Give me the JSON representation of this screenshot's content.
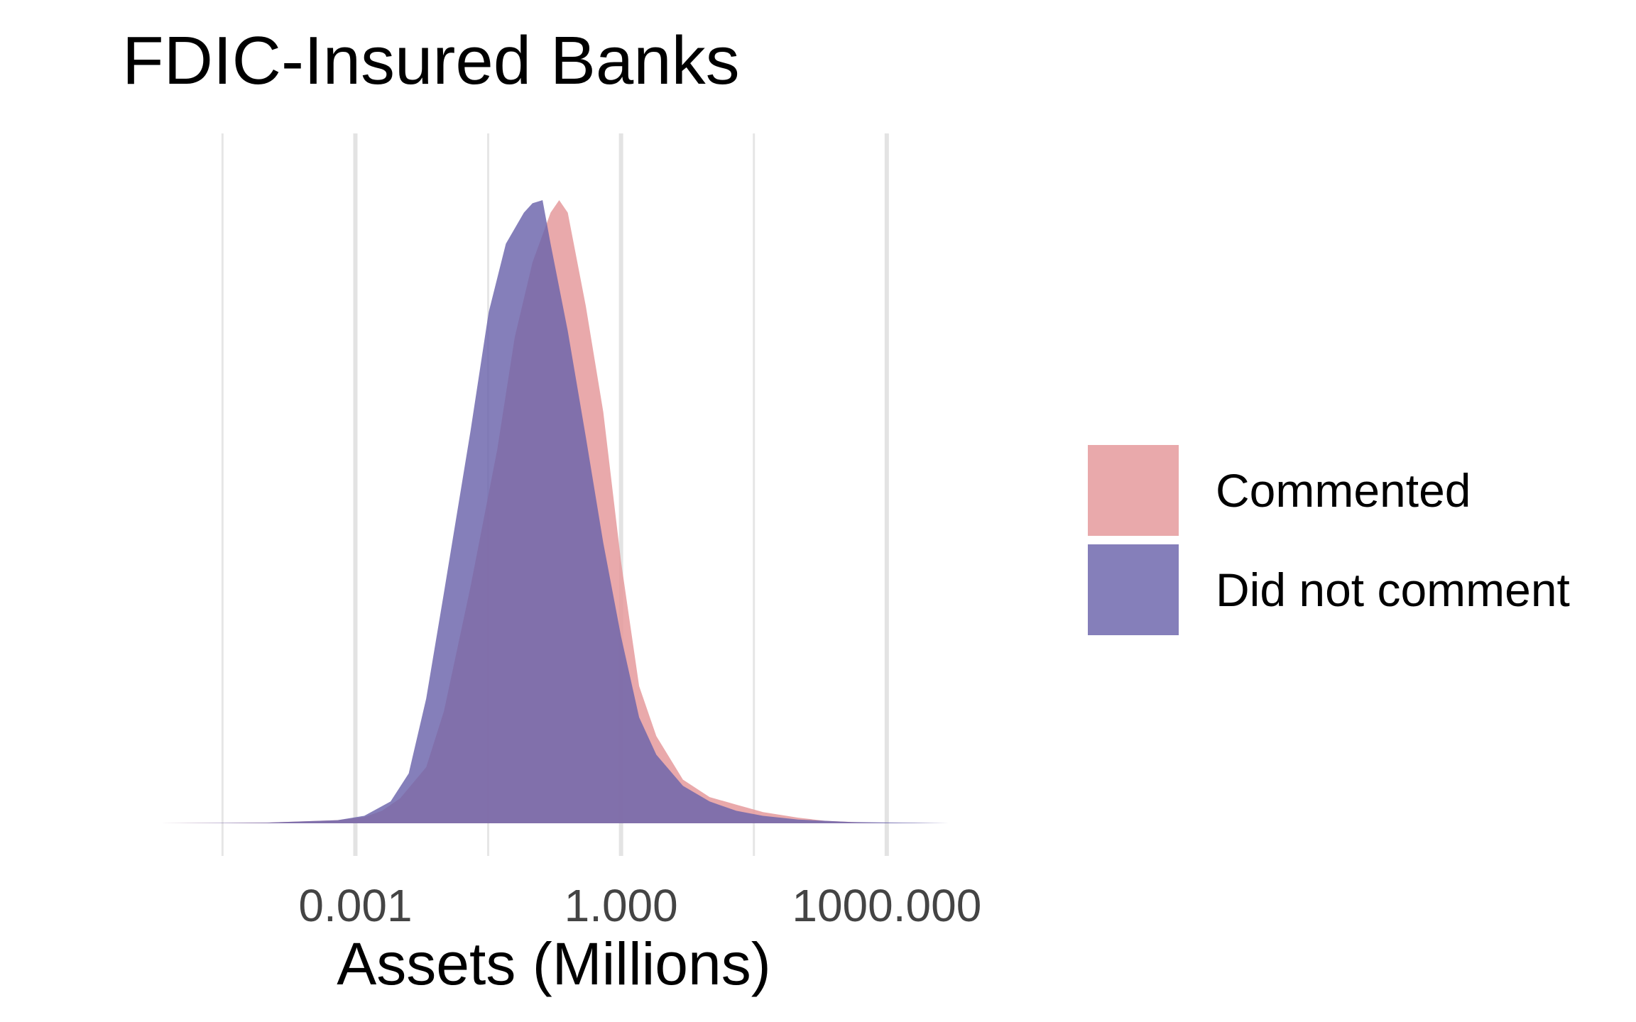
{
  "chart_data": {
    "type": "area",
    "title": "FDIC-Insured Banks",
    "xlabel": "Assets (Millions)",
    "ylabel": "",
    "x_scale": "log10",
    "x_ticks": [
      {
        "value": 0.001,
        "label": "0.001"
      },
      {
        "value": 1,
        "label": "1.000"
      },
      {
        "value": 1000,
        "label": "1000.000"
      }
    ],
    "x_minor_gridlines": [
      3.16e-05,
      0.0316,
      31.6
    ],
    "xlim": [
      6.3e-06,
      5000
    ],
    "y_axis_visible": false,
    "grid": "vertical only",
    "legend_position": "right",
    "series": [
      {
        "name": "Commented",
        "color": "#E59A9C",
        "opacity": 0.85,
        "points": [
          [
            6.3e-06,
            0.0
          ],
          [
            0.0001,
            0.001
          ],
          [
            0.00063,
            0.005
          ],
          [
            0.00126,
            0.01
          ],
          [
            0.002,
            0.02
          ],
          [
            0.0032,
            0.04
          ],
          [
            0.0063,
            0.09
          ],
          [
            0.01,
            0.18
          ],
          [
            0.02,
            0.38
          ],
          [
            0.04,
            0.6
          ],
          [
            0.063,
            0.78
          ],
          [
            0.1,
            0.9
          ],
          [
            0.16,
            0.98
          ],
          [
            0.2,
            1.0
          ],
          [
            0.25,
            0.98
          ],
          [
            0.4,
            0.83
          ],
          [
            0.63,
            0.66
          ],
          [
            1.0,
            0.42
          ],
          [
            1.6,
            0.22
          ],
          [
            2.5,
            0.14
          ],
          [
            5.0,
            0.07
          ],
          [
            10,
            0.042
          ],
          [
            20,
            0.03
          ],
          [
            40,
            0.018
          ],
          [
            100,
            0.009
          ],
          [
            200,
            0.004
          ],
          [
            500,
            0.0015
          ],
          [
            1000,
            0.0
          ]
        ]
      },
      {
        "name": "Did not comment",
        "color": "#6A63AB",
        "opacity": 0.82,
        "points": [
          [
            6.3e-06,
            0.0
          ],
          [
            0.0001,
            0.001
          ],
          [
            0.00063,
            0.005
          ],
          [
            0.00126,
            0.012
          ],
          [
            0.0025,
            0.035
          ],
          [
            0.004,
            0.08
          ],
          [
            0.0063,
            0.2
          ],
          [
            0.01,
            0.37
          ],
          [
            0.02,
            0.63
          ],
          [
            0.032,
            0.82
          ],
          [
            0.05,
            0.93
          ],
          [
            0.08,
            0.98
          ],
          [
            0.1,
            0.995
          ],
          [
            0.13,
            1.0
          ],
          [
            0.16,
            0.93
          ],
          [
            0.25,
            0.79
          ],
          [
            0.4,
            0.62
          ],
          [
            0.63,
            0.45
          ],
          [
            1.0,
            0.3
          ],
          [
            1.6,
            0.17
          ],
          [
            2.5,
            0.11
          ],
          [
            5.0,
            0.06
          ],
          [
            10,
            0.035
          ],
          [
            20,
            0.02
          ],
          [
            40,
            0.012
          ],
          [
            100,
            0.006
          ],
          [
            400,
            0.002
          ],
          [
            2000,
            0.0008
          ],
          [
            5000,
            0.0
          ]
        ]
      }
    ]
  }
}
